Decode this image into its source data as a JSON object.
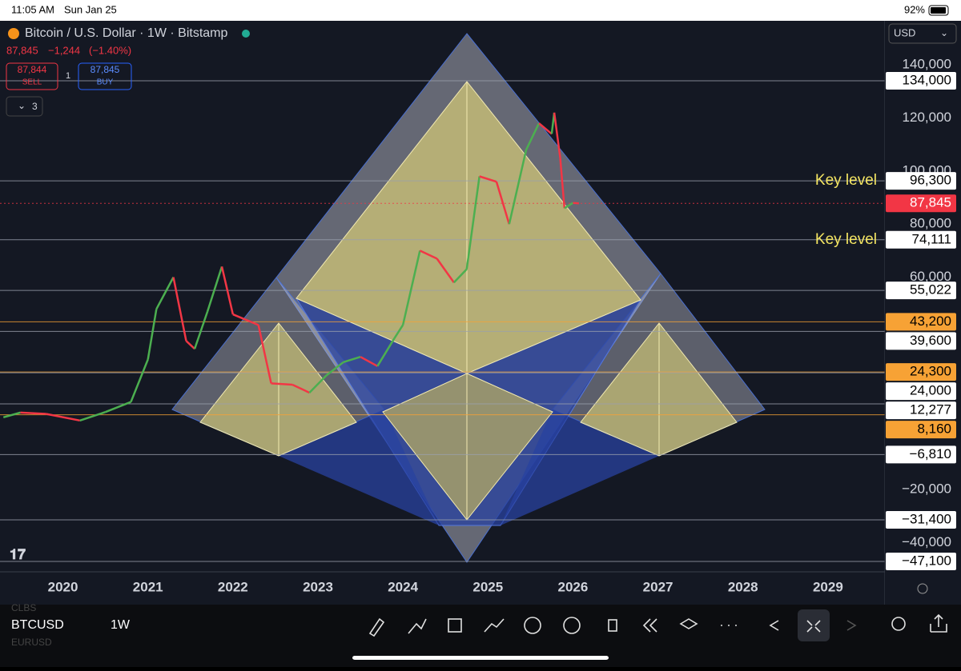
{
  "status_bar": {
    "time": "11:05 AM",
    "date": "Sun Jan 25",
    "battery": "92%"
  },
  "header": {
    "symbol_title": "Bitcoin / U.S. Dollar · 1W · Bitstamp",
    "quote": {
      "last": "87,845",
      "change": "−1,244",
      "change_pct": "(−1.40%)"
    },
    "sell": {
      "price": "87,844",
      "label": "SELL"
    },
    "quantity": "1",
    "buy": {
      "price": "87,845",
      "label": "BUY"
    },
    "indicators_count": "3",
    "currency": "USD"
  },
  "chart_data": {
    "type": "line",
    "x": [
      2019.3,
      2019.5,
      2019.8,
      2020.2,
      2020.5,
      2020.8,
      2021.0,
      2021.1,
      2021.3,
      2021.45,
      2021.55,
      2021.7,
      2021.87,
      2022.0,
      2022.3,
      2022.45,
      2022.7,
      2022.9,
      2023.1,
      2023.3,
      2023.5,
      2023.7,
      2023.9,
      2024.0,
      2024.2,
      2024.4,
      2024.6,
      2024.75,
      2024.9,
      2025.1,
      2025.25,
      2025.45,
      2025.6,
      2025.75,
      2025.78,
      2025.85,
      2025.9,
      2026.0,
      2026.07
    ],
    "values": [
      7200,
      9000,
      8500,
      6000,
      9200,
      13000,
      29000,
      48000,
      60000,
      36000,
      33000,
      47000,
      64000,
      46000,
      42000,
      20000,
      19500,
      16500,
      23000,
      28000,
      30000,
      26500,
      37000,
      42000,
      70000,
      67000,
      58000,
      63000,
      98000,
      96000,
      80000,
      108000,
      118000,
      114000,
      122000,
      105000,
      86000,
      88000,
      87845
    ],
    "up_color": "#4caf50",
    "down_color": "#f23645",
    "xlim": [
      2019.26,
      2029.67
    ],
    "xticks": [
      2020,
      2021,
      2022,
      2023,
      2024,
      2025,
      2026,
      2027,
      2028,
      2029
    ],
    "ylim": [
      -51000,
      155400
    ],
    "yticks": [
      {
        "value": 140000,
        "label": "140,000"
      },
      {
        "value": 120000,
        "label": "120,000"
      },
      {
        "value": 100000,
        "label": "100,000"
      },
      {
        "value": 80000,
        "label": "80,000"
      },
      {
        "value": 60000,
        "label": "60,000"
      },
      {
        "value": -20000,
        "label": "−20,000"
      },
      {
        "value": -40000,
        "label": "−40,000"
      }
    ],
    "levels": [
      {
        "value": 134000,
        "label": "134,000",
        "color": "white"
      },
      {
        "value": 96300,
        "label": "96,300",
        "color": "white"
      },
      {
        "value": 87845,
        "label": "87,845",
        "color": "red"
      },
      {
        "value": 74111,
        "label": "74,111",
        "color": "white"
      },
      {
        "value": 55022,
        "label": "55,022",
        "color": "white"
      },
      {
        "value": 43200,
        "label": "43,200",
        "color": "orange"
      },
      {
        "value": 39600,
        "label": "39,600",
        "color": "white"
      },
      {
        "value": 24300,
        "label": "24,300",
        "color": "orange"
      },
      {
        "value": 24000,
        "label": "24,000",
        "color": "white"
      },
      {
        "value": 12277,
        "label": "12,277",
        "color": "white"
      },
      {
        "value": 8160,
        "label": "8,160",
        "color": "orange"
      },
      {
        "value": -6810,
        "label": "−6,810",
        "color": "white"
      },
      {
        "value": -31400,
        "label": "−31,400",
        "color": "white"
      },
      {
        "value": -47100,
        "label": "−47,100",
        "color": "white"
      }
    ],
    "annotations": [
      {
        "text": "Key level",
        "value": 96300
      },
      {
        "text": "Key level",
        "value": 74111
      }
    ]
  },
  "bottom_bar": {
    "watch_above": "CLBS",
    "symbol": "BTCUSD",
    "watch_below": "EURUSD",
    "interval": "1W"
  }
}
